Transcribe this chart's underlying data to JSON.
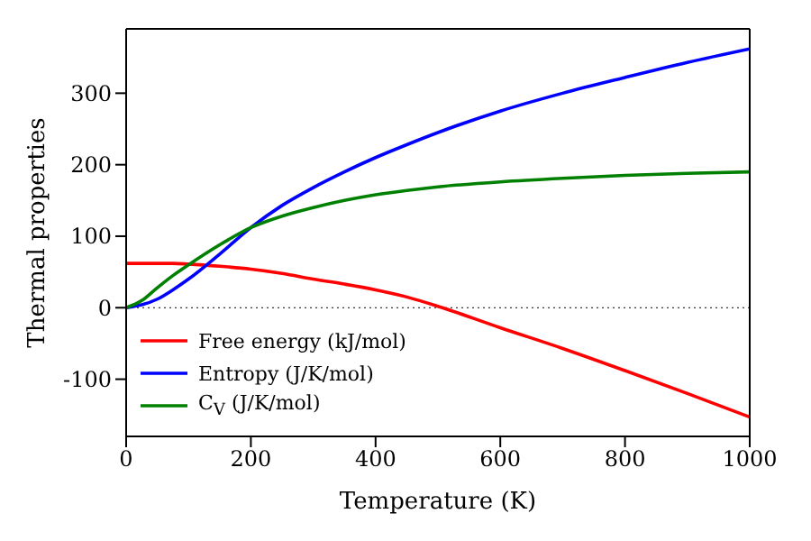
{
  "chart_data": {
    "type": "line",
    "xlabel": "Temperature (K)",
    "ylabel": "Thermal properties",
    "x": [
      0,
      25,
      50,
      75,
      100,
      150,
      200,
      250,
      300,
      350,
      400,
      450,
      500,
      600,
      700,
      800,
      900,
      1000
    ],
    "series": [
      {
        "name": "Free energy (kJ/mol)",
        "color": "#ff0000",
        "values": [
          62,
          62,
          62,
          62,
          61,
          58,
          54,
          48,
          40,
          33,
          25,
          15,
          2,
          -28,
          -57,
          -88,
          -120,
          -153
        ]
      },
      {
        "name": "Entropy (J/K/mol)",
        "color": "#0000ff",
        "values": [
          0,
          4,
          12,
          25,
          40,
          75,
          112,
          143,
          168,
          190,
          210,
          228,
          245,
          275,
          300,
          322,
          343,
          362
        ]
      },
      {
        "name": "C$_{V}$ (J/K/mol)",
        "color": "#008000",
        "values": [
          0,
          10,
          28,
          45,
          60,
          88,
          112,
          128,
          140,
          150,
          158,
          164,
          169,
          176,
          181,
          185,
          188,
          190
        ]
      }
    ],
    "xlim": [
      0,
      1000
    ],
    "xticks": [
      0,
      200,
      400,
      600,
      800,
      1000
    ],
    "ylim": [
      -180,
      390
    ],
    "yticks": [
      -100,
      0,
      100,
      200,
      300
    ],
    "ref_lines": [
      {
        "axis": "y",
        "value": 0,
        "color": "#000000",
        "line_style": "dotted"
      }
    ],
    "grid": false,
    "legend": "bottom left",
    "marker": "none",
    "line_style": "solid"
  }
}
